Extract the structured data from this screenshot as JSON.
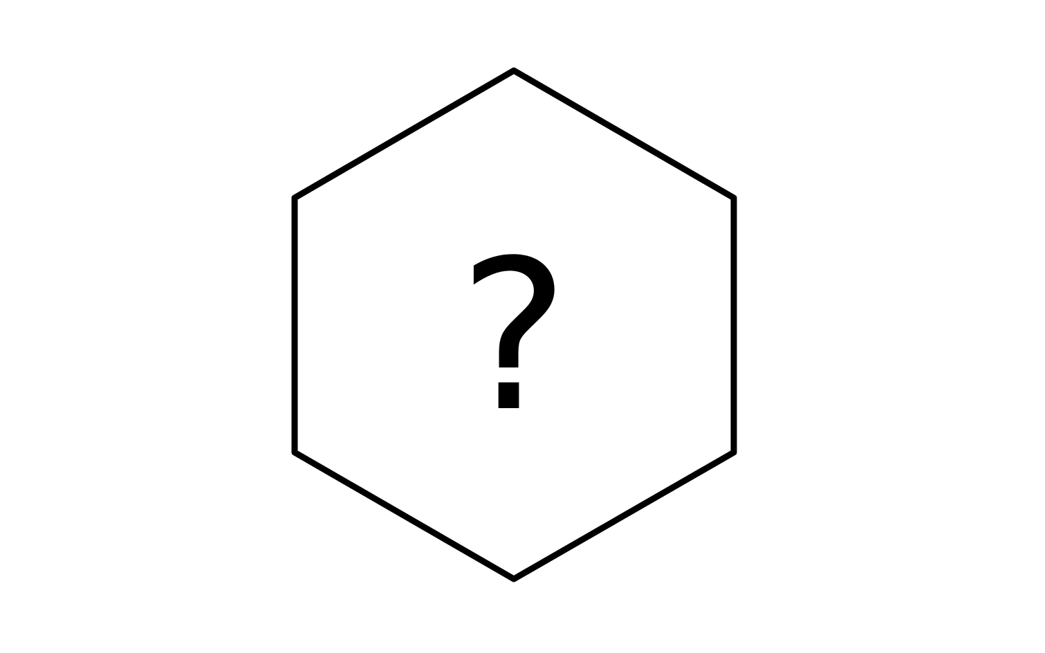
{
  "diagram": {
    "shape": "hexagon",
    "center_label": "?",
    "stroke_color": "#000000",
    "fill_color": "#ffffff",
    "text_color": "#000000"
  }
}
